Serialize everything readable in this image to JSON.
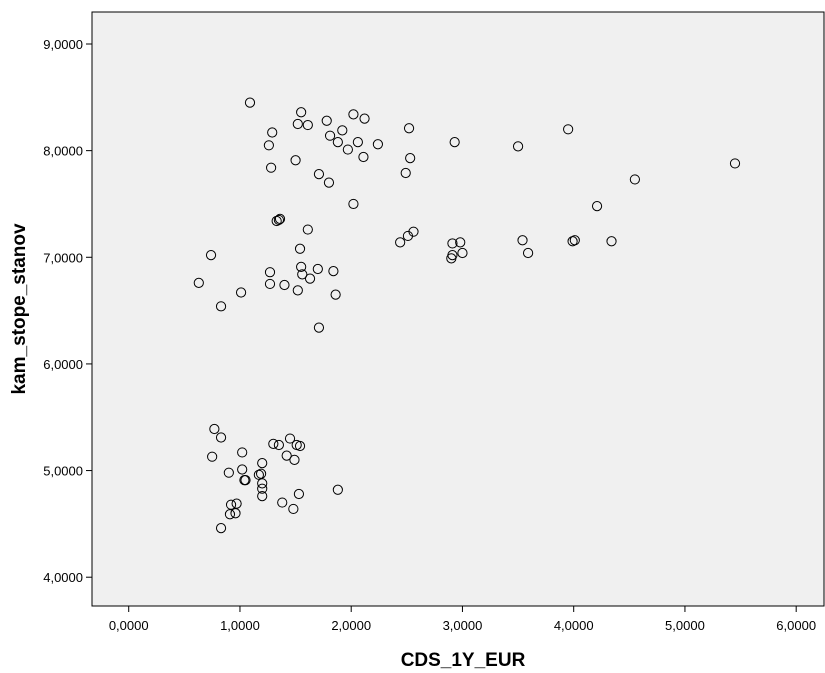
{
  "chart_data": {
    "type": "scatter",
    "xlabel": "CDS_1Y_EUR",
    "ylabel": "kam_stope_stanov",
    "xlim": [
      -0.33,
      6.25
    ],
    "ylim": [
      3.73,
      9.3
    ],
    "x_ticks": [
      0,
      1,
      2,
      3,
      4,
      5,
      6
    ],
    "x_tick_labels": [
      "0,0000",
      "1,0000",
      "2,0000",
      "3,0000",
      "4,0000",
      "5,0000",
      "6,0000"
    ],
    "y_ticks": [
      4,
      5,
      6,
      7,
      8,
      9
    ],
    "y_tick_labels": [
      "4,0000",
      "5,0000",
      "6,0000",
      "7,0000",
      "8,0000",
      "9,0000"
    ],
    "grid": false,
    "plot_background": "#f0f0f0",
    "marker": "open-circle",
    "series": [
      {
        "points": [
          [
            1.09,
            8.45
          ],
          [
            1.55,
            8.36
          ],
          [
            2.02,
            8.34
          ],
          [
            1.78,
            8.28
          ],
          [
            2.12,
            8.3
          ],
          [
            1.52,
            8.25
          ],
          [
            1.61,
            8.24
          ],
          [
            2.52,
            8.21
          ],
          [
            1.29,
            8.17
          ],
          [
            1.92,
            8.19
          ],
          [
            3.95,
            8.2
          ],
          [
            1.81,
            8.14
          ],
          [
            1.88,
            8.08
          ],
          [
            2.06,
            8.08
          ],
          [
            2.93,
            8.08
          ],
          [
            1.26,
            8.05
          ],
          [
            1.97,
            8.01
          ],
          [
            2.24,
            8.06
          ],
          [
            3.5,
            8.04
          ],
          [
            2.11,
            7.94
          ],
          [
            1.5,
            7.91
          ],
          [
            2.53,
            7.93
          ],
          [
            5.45,
            7.88
          ],
          [
            1.28,
            7.84
          ],
          [
            1.71,
            7.78
          ],
          [
            2.49,
            7.79
          ],
          [
            1.8,
            7.7
          ],
          [
            4.55,
            7.73
          ],
          [
            2.02,
            7.5
          ],
          [
            4.21,
            7.48
          ],
          [
            1.33,
            7.34
          ],
          [
            1.36,
            7.36
          ],
          [
            1.35,
            7.35
          ],
          [
            1.61,
            7.26
          ],
          [
            2.56,
            7.24
          ],
          [
            2.51,
            7.2
          ],
          [
            2.44,
            7.14
          ],
          [
            2.91,
            7.13
          ],
          [
            2.98,
            7.14
          ],
          [
            3.54,
            7.16
          ],
          [
            3.99,
            7.15
          ],
          [
            4.01,
            7.16
          ],
          [
            4.34,
            7.15
          ],
          [
            1.54,
            7.08
          ],
          [
            0.74,
            7.02
          ],
          [
            2.91,
            7.02
          ],
          [
            2.9,
            6.99
          ],
          [
            3.0,
            7.04
          ],
          [
            3.59,
            7.04
          ],
          [
            1.55,
            6.91
          ],
          [
            1.7,
            6.89
          ],
          [
            1.84,
            6.87
          ],
          [
            1.27,
            6.86
          ],
          [
            1.56,
            6.84
          ],
          [
            1.63,
            6.8
          ],
          [
            0.63,
            6.76
          ],
          [
            1.27,
            6.75
          ],
          [
            1.4,
            6.74
          ],
          [
            1.52,
            6.69
          ],
          [
            1.01,
            6.67
          ],
          [
            1.86,
            6.65
          ],
          [
            0.83,
            6.54
          ],
          [
            1.71,
            6.34
          ],
          [
            0.77,
            5.39
          ],
          [
            0.83,
            5.31
          ],
          [
            1.45,
            5.3
          ],
          [
            1.3,
            5.25
          ],
          [
            1.35,
            5.24
          ],
          [
            1.51,
            5.24
          ],
          [
            1.54,
            5.23
          ],
          [
            1.02,
            5.17
          ],
          [
            1.42,
            5.14
          ],
          [
            0.75,
            5.13
          ],
          [
            1.49,
            5.1
          ],
          [
            1.2,
            5.07
          ],
          [
            1.02,
            5.01
          ],
          [
            0.9,
            4.98
          ],
          [
            1.17,
            4.96
          ],
          [
            1.19,
            4.97
          ],
          [
            1.04,
            4.91
          ],
          [
            1.05,
            4.91
          ],
          [
            1.2,
            4.88
          ],
          [
            1.2,
            4.83
          ],
          [
            1.88,
            4.82
          ],
          [
            1.53,
            4.78
          ],
          [
            1.2,
            4.76
          ],
          [
            1.38,
            4.7
          ],
          [
            0.97,
            4.69
          ],
          [
            0.92,
            4.68
          ],
          [
            1.48,
            4.64
          ],
          [
            0.91,
            4.59
          ],
          [
            0.96,
            4.6
          ],
          [
            0.83,
            4.46
          ]
        ]
      }
    ]
  }
}
